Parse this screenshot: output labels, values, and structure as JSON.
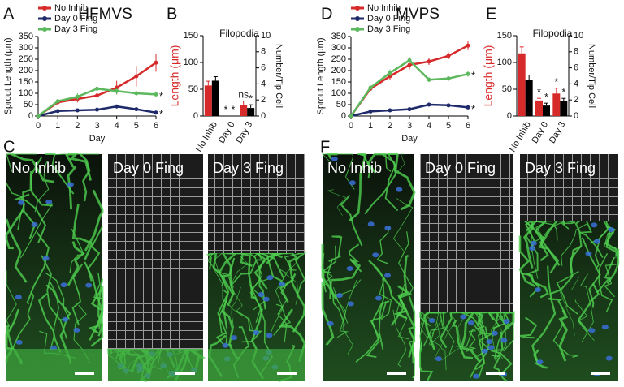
{
  "chart_data": [
    {
      "type": "line",
      "title": "HFMVS",
      "xlabel": "Day",
      "ylabel": "Sprout Length (μm)",
      "x": [
        0,
        1,
        2,
        3,
        4,
        5,
        6
      ],
      "xlim": [
        0,
        6
      ],
      "xticks": [
        0,
        1,
        2,
        3,
        4,
        5,
        6
      ],
      "ylim": [
        0,
        350
      ],
      "yticks": [
        0,
        50,
        100,
        150,
        200,
        250,
        300,
        350
      ],
      "legend": "upper left",
      "series": [
        {
          "name": "No Inhib",
          "color": "#d62a2a",
          "values": [
            0,
            60,
            75,
            90,
            125,
            175,
            235
          ],
          "errors": [
            0,
            8,
            15,
            20,
            30,
            45,
            40
          ]
        },
        {
          "name": "Day 0 Fing",
          "color": "#1f2a6b",
          "values": [
            0,
            22,
            25,
            28,
            42,
            30,
            15
          ],
          "errors": [
            0,
            5,
            5,
            5,
            5,
            5,
            5
          ],
          "end_label": "*"
        },
        {
          "name": "Day 3 Fing",
          "color": "#5cb85c",
          "values": [
            0,
            65,
            85,
            120,
            110,
            100,
            95
          ],
          "errors": [
            0,
            10,
            15,
            25,
            15,
            10,
            8
          ],
          "end_label": "*"
        }
      ]
    },
    {
      "type": "bar",
      "title": "Filopodia",
      "ylabel": "Length (μm)",
      "y2label": "Number/Tip Cell",
      "categories": [
        "No Inhib",
        "Day 0",
        "Day 3"
      ],
      "ylim": [
        0,
        150
      ],
      "yticks": [
        0,
        50,
        100,
        150
      ],
      "y2lim": [
        0,
        10
      ],
      "y2ticks": [
        0,
        2,
        4,
        6,
        8,
        10
      ],
      "series": [
        {
          "name": "Length",
          "color": "#d62a2a",
          "values": [
            57,
            null,
            20
          ],
          "errors": [
            8,
            null,
            8
          ],
          "annotations": [
            null,
            "*",
            "ns"
          ]
        },
        {
          "name": "Number",
          "color": "#000000",
          "axis": "y2",
          "values": [
            4.4,
            null,
            1
          ],
          "errors": [
            0.5,
            null,
            0.4
          ],
          "annotations": [
            null,
            "*",
            "*"
          ]
        }
      ]
    },
    {
      "type": "line",
      "title": "MVPS",
      "xlabel": "Day",
      "ylabel": "Sprout Length (μm)",
      "x": [
        0,
        1,
        2,
        3,
        4,
        5,
        6
      ],
      "xlim": [
        0,
        6
      ],
      "xticks": [
        0,
        1,
        2,
        3,
        4,
        5,
        6
      ],
      "ylim": [
        0,
        350
      ],
      "yticks": [
        0,
        50,
        100,
        150,
        200,
        250,
        300,
        350
      ],
      "legend": "upper left",
      "series": [
        {
          "name": "No Inhib",
          "color": "#d62a2a",
          "values": [
            0,
            120,
            175,
            225,
            240,
            265,
            310
          ],
          "errors": [
            0,
            10,
            15,
            20,
            15,
            15,
            20
          ]
        },
        {
          "name": "Day 0 Fing",
          "color": "#1f2a6b",
          "values": [
            0,
            20,
            25,
            30,
            50,
            47,
            38
          ],
          "errors": [
            0,
            5,
            5,
            5,
            5,
            5,
            5
          ],
          "end_label": "*"
        },
        {
          "name": "Day 3 Fing",
          "color": "#5cb85c",
          "values": [
            0,
            125,
            190,
            245,
            160,
            165,
            185
          ],
          "errors": [
            0,
            10,
            15,
            15,
            10,
            10,
            12
          ],
          "end_label": "*"
        }
      ]
    },
    {
      "type": "bar",
      "title": "Filopodia",
      "ylabel": "Length (μm)",
      "y2label": "Number/Tip Cell",
      "categories": [
        "No Inhib",
        "Day 0",
        "Day 3"
      ],
      "ylim": [
        0,
        150
      ],
      "yticks": [
        0,
        50,
        100,
        150
      ],
      "y2lim": [
        0,
        10
      ],
      "y2ticks": [
        0,
        2,
        4,
        6,
        8,
        10
      ],
      "series": [
        {
          "name": "Length",
          "color": "#d62a2a",
          "values": [
            117,
            29,
            42
          ],
          "errors": [
            12,
            4,
            10
          ],
          "annotations": [
            null,
            "*",
            "*"
          ]
        },
        {
          "name": "Number",
          "color": "#000000",
          "axis": "y2",
          "values": [
            4.5,
            1.3,
            1.9
          ],
          "errors": [
            0.6,
            0.3,
            0.3
          ],
          "annotations": [
            null,
            "*",
            "*"
          ]
        }
      ]
    }
  ],
  "chart_letters": [
    "A",
    "B",
    "D",
    "E"
  ],
  "images": [
    {
      "letter": "C",
      "labels": [
        "No Inhib",
        "Day 0 Fing",
        "Day 3 Fing"
      ]
    },
    {
      "letter": "F",
      "labels": [
        "No Inhib",
        "Day 0 Fing",
        "Day 3 Fing"
      ]
    }
  ]
}
